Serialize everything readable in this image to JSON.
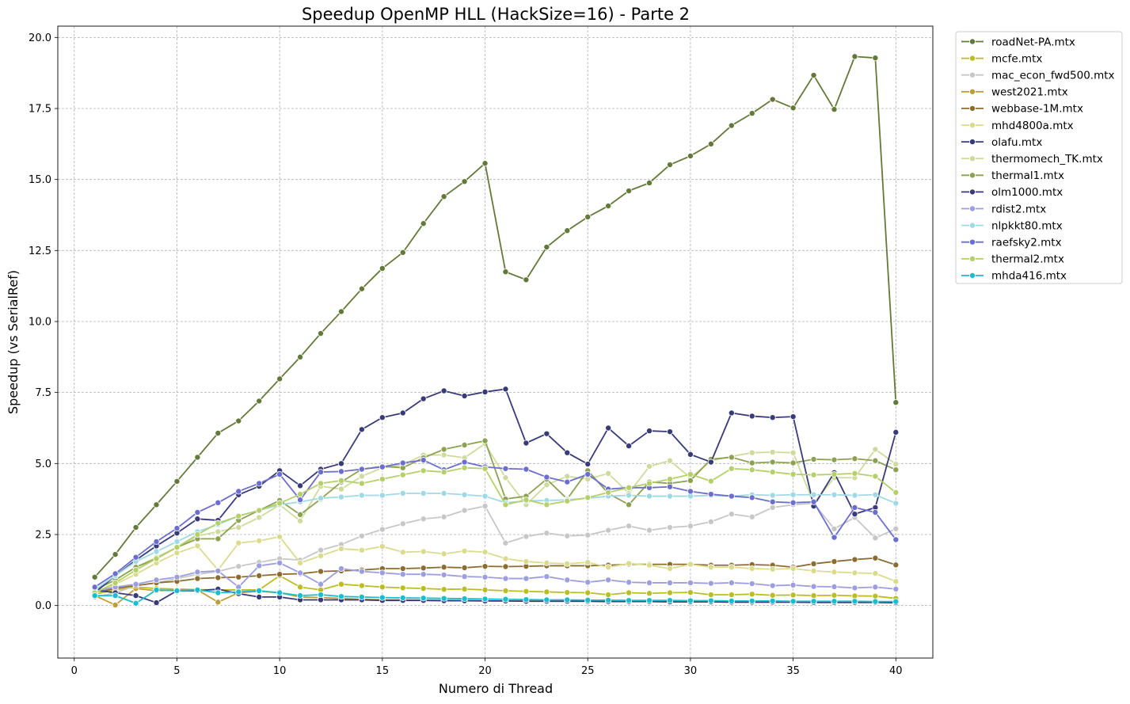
{
  "chart_data": {
    "type": "line",
    "title": "Speedup OpenMP HLL (HackSize=16) - Parte 2",
    "xlabel": "Numero di Thread",
    "ylabel": "Speedup (vs SerialRef)",
    "xlim": [
      -0.8,
      41.8
    ],
    "ylim": [
      -1.85,
      20.4
    ],
    "xticks": [
      0,
      5,
      10,
      15,
      20,
      25,
      30,
      35,
      40
    ],
    "xtick_labels": [
      "0",
      "5",
      "10",
      "15",
      "20",
      "25",
      "30",
      "35",
      "40"
    ],
    "yticks": [
      0,
      2.5,
      5,
      7.5,
      10,
      12.5,
      15,
      17.5,
      20
    ],
    "ytick_labels": [
      "0.0",
      "2.5",
      "5.0",
      "7.5",
      "10.0",
      "12.5",
      "15.0",
      "17.5",
      "20.0"
    ],
    "grid": true,
    "legend_position": "outside-top-right",
    "x": [
      1,
      2,
      3,
      4,
      5,
      6,
      7,
      8,
      9,
      10,
      11,
      12,
      13,
      14,
      15,
      16,
      17,
      18,
      19,
      20,
      21,
      22,
      23,
      24,
      25,
      26,
      27,
      28,
      29,
      30,
      31,
      32,
      33,
      34,
      35,
      36,
      37,
      38,
      39,
      40
    ],
    "series": [
      {
        "name": "roadNet-PA.mtx",
        "color": "#637939",
        "values": [
          1.0,
          1.8,
          2.75,
          3.55,
          4.37,
          5.22,
          6.07,
          6.5,
          7.2,
          7.98,
          8.75,
          9.58,
          10.35,
          11.15,
          11.87,
          12.43,
          13.45,
          14.4,
          14.93,
          15.57,
          11.75,
          11.47,
          12.62,
          13.2,
          13.68,
          14.07,
          14.6,
          14.88,
          15.52,
          15.83,
          16.25,
          16.9,
          17.33,
          17.82,
          17.52,
          18.67,
          17.47,
          19.33,
          19.28,
          7.15
        ]
      },
      {
        "name": "mcfe.mtx",
        "color": "#bcbd22",
        "values": [
          0.4,
          0.55,
          0.65,
          0.6,
          0.58,
          0.56,
          0.55,
          0.55,
          0.55,
          1.05,
          0.65,
          0.55,
          0.75,
          0.7,
          0.65,
          0.62,
          0.6,
          0.57,
          0.58,
          0.55,
          0.52,
          0.5,
          0.48,
          0.46,
          0.45,
          0.38,
          0.45,
          0.43,
          0.45,
          0.46,
          0.38,
          0.38,
          0.4,
          0.36,
          0.37,
          0.35,
          0.36,
          0.34,
          0.33,
          0.25
        ]
      },
      {
        "name": "mac_econ_fwd500.mtx",
        "color": "#c7c7c7",
        "values": [
          0.3,
          0.45,
          0.7,
          0.8,
          0.95,
          1.1,
          1.2,
          1.38,
          1.52,
          1.65,
          1.6,
          1.95,
          2.15,
          2.45,
          2.68,
          2.88,
          3.05,
          3.12,
          3.35,
          3.5,
          2.2,
          2.43,
          2.55,
          2.45,
          2.48,
          2.65,
          2.8,
          2.65,
          2.75,
          2.8,
          2.95,
          3.22,
          3.12,
          3.45,
          3.55,
          3.6,
          2.7,
          3.1,
          2.38,
          2.7
        ]
      },
      {
        "name": "west2021.mtx",
        "color": "#bd9e39",
        "values": [
          0.35,
          0.02,
          0.6,
          0.52,
          0.55,
          0.55,
          0.12,
          0.45,
          0.5,
          0.45,
          0.3,
          0.28,
          0.25,
          0.22,
          0.2,
          0.2,
          0.18,
          0.18,
          0.17,
          0.17,
          0.16,
          0.16,
          0.15,
          0.15,
          0.15,
          0.14,
          0.14,
          0.14,
          0.13,
          0.13,
          0.13,
          0.12,
          0.12,
          0.12,
          0.12,
          0.11,
          0.11,
          0.11,
          0.11,
          0.1
        ]
      },
      {
        "name": "webbase-1M.mtx",
        "color": "#8c6d31",
        "values": [
          0.45,
          0.6,
          0.7,
          0.8,
          0.85,
          0.95,
          0.98,
          1.0,
          1.05,
          1.1,
          1.12,
          1.2,
          1.22,
          1.25,
          1.3,
          1.3,
          1.32,
          1.35,
          1.33,
          1.38,
          1.37,
          1.38,
          1.4,
          1.4,
          1.4,
          1.42,
          1.45,
          1.45,
          1.45,
          1.45,
          1.42,
          1.42,
          1.44,
          1.42,
          1.35,
          1.47,
          1.55,
          1.62,
          1.67,
          1.43
        ]
      },
      {
        "name": "mhd4800a.mtx",
        "color": "#dbdb8d",
        "values": [
          0.4,
          0.75,
          1.1,
          1.5,
          1.85,
          2.1,
          1.25,
          2.2,
          2.28,
          2.42,
          1.5,
          1.75,
          2.0,
          1.95,
          2.08,
          1.88,
          1.9,
          1.82,
          1.92,
          1.88,
          1.65,
          1.55,
          1.5,
          1.47,
          1.52,
          1.35,
          1.48,
          1.42,
          1.3,
          1.45,
          1.35,
          1.35,
          1.3,
          1.28,
          1.3,
          1.22,
          1.18,
          1.15,
          1.13,
          0.85
        ]
      },
      {
        "name": "olafu.mtx",
        "color": "#393b79",
        "values": [
          0.55,
          0.45,
          0.35,
          0.1,
          0.52,
          0.52,
          0.58,
          0.42,
          0.3,
          0.3,
          0.2,
          0.2,
          0.2,
          0.2,
          0.18,
          0.18,
          0.18,
          0.17,
          0.17,
          0.16,
          0.16,
          0.15,
          0.15,
          0.15,
          0.15,
          0.14,
          0.14,
          0.14,
          0.13,
          0.13,
          0.13,
          0.12,
          0.12,
          0.12,
          0.12,
          0.11,
          0.11,
          0.11,
          0.11,
          0.1
        ]
      },
      {
        "name": "thermomech_TK.mtx",
        "color": "#cedb9c",
        "values": [
          0.55,
          0.9,
          1.35,
          1.7,
          2.05,
          2.45,
          2.6,
          2.75,
          3.1,
          3.55,
          2.98,
          4.2,
          4.1,
          4.55,
          4.85,
          4.95,
          5.3,
          5.3,
          5.2,
          5.7,
          4.5,
          3.55,
          4.25,
          4.55,
          4.45,
          4.65,
          3.95,
          4.9,
          5.1,
          4.5,
          5.1,
          5.25,
          5.38,
          5.4,
          5.38,
          3.6,
          4.5,
          4.5,
          5.5,
          4.98
        ]
      },
      {
        "name": "thermal1.mtx",
        "color": "#8ca252",
        "values": [
          0.55,
          0.9,
          1.35,
          1.65,
          2.05,
          2.35,
          2.35,
          3.0,
          3.35,
          3.7,
          3.2,
          3.75,
          4.35,
          4.8,
          4.9,
          4.85,
          5.2,
          5.5,
          5.65,
          5.8,
          3.75,
          3.85,
          4.45,
          3.75,
          4.75,
          3.95,
          3.55,
          4.35,
          4.3,
          4.4,
          5.15,
          5.22,
          5.02,
          5.05,
          5.02,
          5.15,
          5.13,
          5.17,
          5.1,
          4.78
        ]
      },
      {
        "name": "olm1000.mtx",
        "color": "#393b79",
        "values": [
          0.45,
          1.05,
          1.6,
          2.1,
          2.55,
          3.05,
          3.0,
          3.9,
          4.2,
          4.75,
          4.22,
          4.8,
          5.0,
          6.2,
          6.62,
          6.78,
          7.28,
          7.56,
          7.38,
          7.52,
          7.62,
          5.72,
          6.05,
          5.38,
          4.98,
          6.25,
          5.62,
          6.15,
          6.12,
          5.32,
          5.05,
          6.78,
          6.67,
          6.62,
          6.65,
          3.5,
          4.68,
          3.22,
          3.45,
          6.1
        ]
      },
      {
        "name": "rdist2.mtx",
        "color": "#9c9ede",
        "values": [
          0.5,
          0.65,
          0.75,
          0.9,
          1.0,
          1.18,
          1.22,
          0.65,
          1.4,
          1.5,
          1.15,
          0.75,
          1.3,
          1.2,
          1.15,
          1.1,
          1.1,
          1.08,
          1.02,
          1.0,
          0.95,
          0.95,
          1.02,
          0.9,
          0.82,
          0.9,
          0.82,
          0.8,
          0.8,
          0.8,
          0.78,
          0.8,
          0.77,
          0.7,
          0.72,
          0.67,
          0.66,
          0.62,
          0.65,
          0.58
        ]
      },
      {
        "name": "nlpkkt80.mtx",
        "color": "#9edae5",
        "values": [
          0.55,
          1.05,
          1.55,
          1.9,
          2.25,
          2.6,
          2.85,
          3.15,
          3.35,
          3.55,
          3.65,
          3.78,
          3.82,
          3.88,
          3.88,
          3.95,
          3.95,
          3.95,
          3.9,
          3.85,
          3.62,
          3.68,
          3.7,
          3.72,
          3.78,
          3.85,
          3.88,
          3.85,
          3.85,
          3.85,
          3.88,
          3.85,
          3.9,
          3.88,
          3.9,
          3.9,
          3.9,
          3.88,
          3.9,
          3.6
        ]
      },
      {
        "name": "raefsky2.mtx",
        "color": "#6b6ecf",
        "values": [
          0.65,
          1.12,
          1.7,
          2.25,
          2.72,
          3.28,
          3.62,
          4.02,
          4.3,
          4.62,
          3.72,
          4.7,
          4.72,
          4.8,
          4.88,
          5.02,
          5.12,
          4.78,
          5.05,
          4.88,
          4.82,
          4.8,
          4.52,
          4.35,
          4.62,
          4.1,
          4.15,
          4.15,
          4.18,
          4.02,
          3.92,
          3.85,
          3.8,
          3.65,
          3.62,
          3.65,
          2.4,
          3.45,
          3.28,
          2.32
        ]
      },
      {
        "name": "thermal2.mtx",
        "color": "#b5cf6b",
        "values": [
          0.45,
          0.8,
          1.25,
          1.65,
          2.05,
          2.5,
          2.9,
          3.15,
          3.35,
          3.6,
          3.92,
          4.3,
          4.4,
          4.3,
          4.45,
          4.6,
          4.75,
          4.7,
          4.85,
          4.82,
          3.55,
          3.72,
          3.55,
          3.68,
          3.8,
          3.98,
          4.15,
          4.3,
          4.45,
          4.62,
          4.38,
          4.82,
          4.78,
          4.7,
          4.62,
          4.6,
          4.62,
          4.65,
          4.55,
          3.98
        ]
      },
      {
        "name": "mhda416.mtx",
        "color": "#17becf",
        "values": [
          0.35,
          0.35,
          0.08,
          0.55,
          0.52,
          0.55,
          0.45,
          0.48,
          0.52,
          0.45,
          0.35,
          0.38,
          0.32,
          0.3,
          0.28,
          0.27,
          0.26,
          0.25,
          0.24,
          0.23,
          0.22,
          0.21,
          0.2,
          0.2,
          0.19,
          0.19,
          0.18,
          0.18,
          0.18,
          0.17,
          0.17,
          0.16,
          0.16,
          0.16,
          0.15,
          0.15,
          0.15,
          0.15,
          0.14,
          0.14
        ]
      }
    ]
  }
}
